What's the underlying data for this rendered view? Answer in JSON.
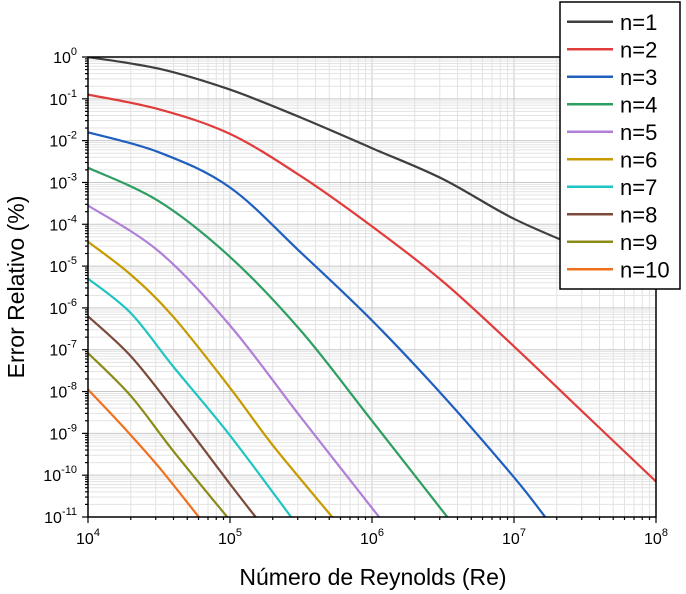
{
  "chart_data": {
    "type": "line",
    "title": "",
    "xlabel": "Número de Reynolds (Re)",
    "ylabel": "Error Relativo (%)",
    "xscale": "log",
    "yscale": "log",
    "xlim_exp": [
      4,
      8
    ],
    "ylim_exp": [
      -11,
      0
    ],
    "xticks": [
      {
        "base": "10",
        "exp": "4"
      },
      {
        "base": "10",
        "exp": "5"
      },
      {
        "base": "10",
        "exp": "6"
      },
      {
        "base": "10",
        "exp": "7"
      },
      {
        "base": "10",
        "exp": "8"
      }
    ],
    "yticks": [
      {
        "base": "10",
        "exp": "0"
      },
      {
        "base": "10",
        "exp": "-1"
      },
      {
        "base": "10",
        "exp": "-2"
      },
      {
        "base": "10",
        "exp": "-3"
      },
      {
        "base": "10",
        "exp": "-4"
      },
      {
        "base": "10",
        "exp": "-5"
      },
      {
        "base": "10",
        "exp": "-6"
      },
      {
        "base": "10",
        "exp": "-7"
      },
      {
        "base": "10",
        "exp": "-8"
      },
      {
        "base": "10",
        "exp": "-9"
      },
      {
        "base": "10",
        "exp": "-10"
      },
      {
        "base": "10",
        "exp": "-11"
      }
    ],
    "grid": true,
    "legend_position": "top-right",
    "series": [
      {
        "name": "n=1",
        "color": "#3f3f3f",
        "log10_Re": [
          4.0,
          4.5,
          5.0,
          5.5,
          6.0,
          6.5,
          7.0,
          7.5
        ],
        "log10_y": [
          0.0,
          -0.28,
          -0.78,
          -1.45,
          -2.18,
          -2.92,
          -3.87,
          -4.61
        ]
      },
      {
        "name": "n=2",
        "color": "#e03c3c",
        "log10_Re": [
          4.0,
          4.5,
          5.0,
          5.5,
          6.0,
          6.5,
          7.0,
          7.5,
          8.0
        ],
        "log10_y": [
          -0.9,
          -1.25,
          -1.84,
          -2.85,
          -4.05,
          -5.37,
          -6.92,
          -8.54,
          -10.15
        ]
      },
      {
        "name": "n=3",
        "color": "#1f5fbf",
        "log10_Re": [
          4.0,
          4.5,
          5.0,
          5.5,
          6.0,
          6.5,
          7.0,
          7.22
        ],
        "log10_y": [
          -1.8,
          -2.28,
          -3.12,
          -4.68,
          -6.3,
          -8.1,
          -10.05,
          -11.0
        ]
      },
      {
        "name": "n=4",
        "color": "#2e9e62",
        "log10_Re": [
          4.0,
          4.5,
          5.0,
          5.5,
          6.0,
          6.53
        ],
        "log10_y": [
          -2.65,
          -3.45,
          -4.78,
          -6.55,
          -8.7,
          -11.0
        ]
      },
      {
        "name": "n=5",
        "color": "#b07fd8",
        "log10_Re": [
          4.0,
          4.5,
          5.0,
          5.5,
          6.05
        ],
        "log10_y": [
          -3.55,
          -4.65,
          -6.42,
          -8.62,
          -11.0
        ]
      },
      {
        "name": "n=6",
        "color": "#c79a00",
        "log10_Re": [
          4.0,
          4.3,
          4.6,
          5.0,
          5.3,
          5.72
        ],
        "log10_y": [
          -4.42,
          -5.2,
          -6.21,
          -7.91,
          -9.28,
          -11.0
        ]
      },
      {
        "name": "n=7",
        "color": "#1fc4c4",
        "log10_Re": [
          4.0,
          4.3,
          4.6,
          5.0,
          5.43
        ],
        "log10_y": [
          -5.3,
          -6.12,
          -7.4,
          -9.05,
          -11.0
        ]
      },
      {
        "name": "n=8",
        "color": "#7b4a3a",
        "log10_Re": [
          4.0,
          4.3,
          4.6,
          5.0,
          5.18
        ],
        "log10_y": [
          -6.2,
          -7.15,
          -8.42,
          -10.21,
          -11.0
        ]
      },
      {
        "name": "n=9",
        "color": "#8b8b1a",
        "log10_Re": [
          4.0,
          4.3,
          4.6,
          4.98
        ],
        "log10_y": [
          -7.08,
          -8.1,
          -9.42,
          -11.0
        ]
      },
      {
        "name": "n=10",
        "color": "#f0701e",
        "log10_Re": [
          4.0,
          4.25,
          4.5,
          4.78
        ],
        "log10_y": [
          -7.95,
          -8.85,
          -9.81,
          -11.0
        ]
      }
    ]
  }
}
